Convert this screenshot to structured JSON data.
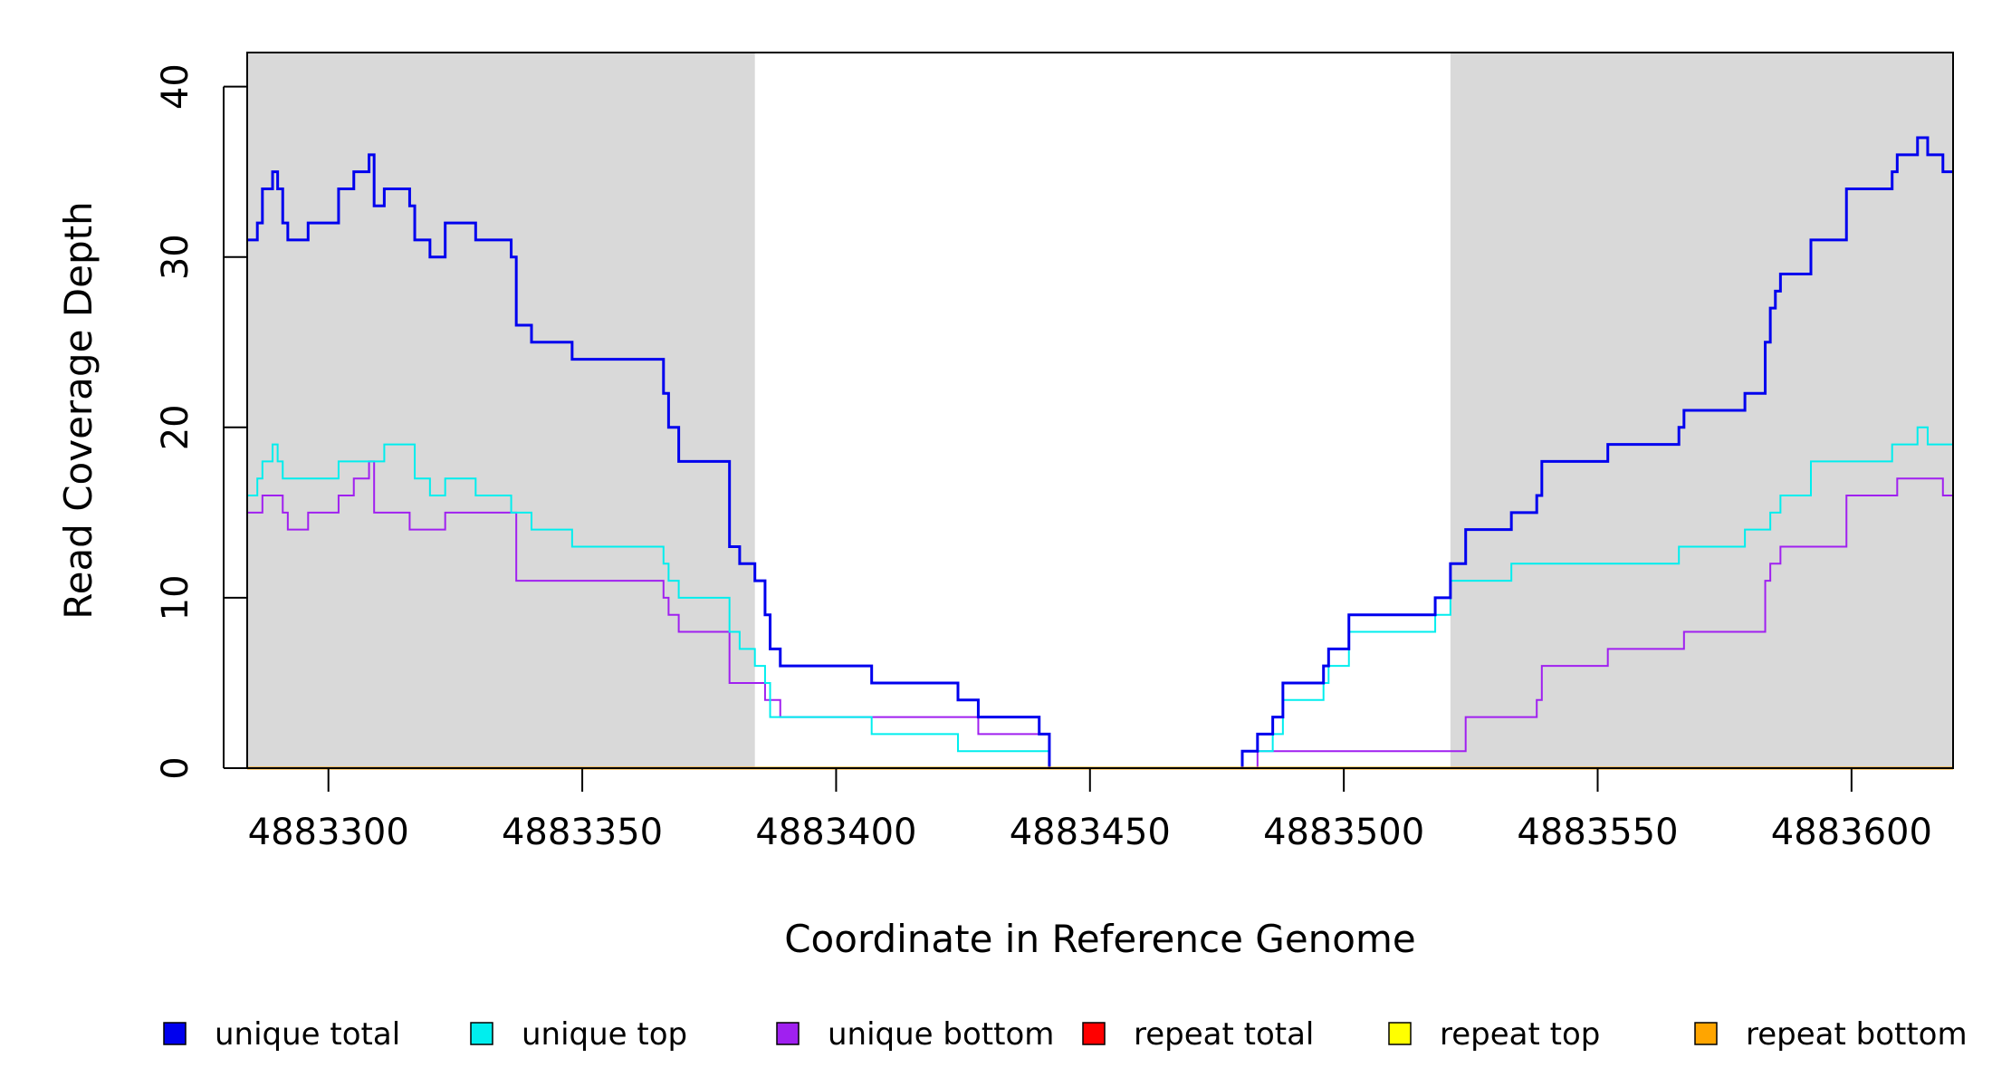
{
  "chart_data": {
    "type": "line",
    "title": "",
    "xlabel": "Coordinate in Reference Genome",
    "ylabel": "Read Coverage Depth",
    "xlim": [
      4883284,
      4883620
    ],
    "ylim": [
      0,
      42
    ],
    "x_ticks": [
      4883300,
      4883350,
      4883400,
      4883450,
      4883500,
      4883550,
      4883600
    ],
    "x_tick_labels": [
      "4883300",
      "4883350",
      "4883400",
      "4883450",
      "4883500",
      "4883550",
      "4883600"
    ],
    "y_ticks": [
      0,
      10,
      20,
      30,
      40
    ],
    "y_tick_labels": [
      "0",
      "10",
      "20",
      "30",
      "40"
    ],
    "shaded_regions": [
      {
        "from": 4883284,
        "to": 4883384,
        "color": "#d9d9d9"
      },
      {
        "from": 4883521,
        "to": 4883620,
        "color": "#d9d9d9"
      }
    ],
    "legend_position": "bottom",
    "series": [
      {
        "name": "unique total",
        "color": "#0000ee",
        "width": 3,
        "points": [
          [
            4883284,
            31
          ],
          [
            4883286,
            32
          ],
          [
            4883287,
            34
          ],
          [
            4883289,
            35
          ],
          [
            4883290,
            34
          ],
          [
            4883291,
            32
          ],
          [
            4883292,
            31
          ],
          [
            4883296,
            32
          ],
          [
            4883302,
            34
          ],
          [
            4883305,
            35
          ],
          [
            4883308,
            36
          ],
          [
            4883309,
            33
          ],
          [
            4883311,
            34
          ],
          [
            4883316,
            33
          ],
          [
            4883317,
            31
          ],
          [
            4883320,
            30
          ],
          [
            4883323,
            32
          ],
          [
            4883329,
            31
          ],
          [
            4883336,
            30
          ],
          [
            4883337,
            26
          ],
          [
            4883340,
            25
          ],
          [
            4883348,
            24
          ],
          [
            4883366,
            22
          ],
          [
            4883367,
            20
          ],
          [
            4883369,
            18
          ],
          [
            4883379,
            13
          ],
          [
            4883381,
            12
          ],
          [
            4883384,
            11
          ],
          [
            4883386,
            9
          ],
          [
            4883387,
            7
          ],
          [
            4883389,
            6
          ],
          [
            4883407,
            5
          ],
          [
            4883424,
            4
          ],
          [
            4883428,
            3
          ],
          [
            4883440,
            2
          ],
          [
            4883442,
            0
          ],
          [
            4883480,
            1
          ],
          [
            4883483,
            2
          ],
          [
            4883486,
            3
          ],
          [
            4883488,
            5
          ],
          [
            4883496,
            6
          ],
          [
            4883497,
            7
          ],
          [
            4883501,
            9
          ],
          [
            4883518,
            10
          ],
          [
            4883521,
            12
          ],
          [
            4883524,
            14
          ],
          [
            4883533,
            15
          ],
          [
            4883538,
            16
          ],
          [
            4883539,
            18
          ],
          [
            4883552,
            19
          ],
          [
            4883566,
            20
          ],
          [
            4883567,
            21
          ],
          [
            4883579,
            22
          ],
          [
            4883583,
            25
          ],
          [
            4883584,
            27
          ],
          [
            4883585,
            28
          ],
          [
            4883586,
            29
          ],
          [
            4883592,
            31
          ],
          [
            4883599,
            34
          ],
          [
            4883608,
            35
          ],
          [
            4883609,
            36
          ],
          [
            4883613,
            37
          ],
          [
            4883615,
            36
          ],
          [
            4883618,
            35
          ],
          [
            4883620,
            35
          ]
        ]
      },
      {
        "name": "unique top",
        "color": "#00eeee",
        "width": 2,
        "points": [
          [
            4883284,
            16
          ],
          [
            4883286,
            17
          ],
          [
            4883287,
            18
          ],
          [
            4883289,
            19
          ],
          [
            4883290,
            18
          ],
          [
            4883291,
            17
          ],
          [
            4883302,
            18
          ],
          [
            4883311,
            19
          ],
          [
            4883317,
            17
          ],
          [
            4883320,
            16
          ],
          [
            4883323,
            17
          ],
          [
            4883329,
            16
          ],
          [
            4883336,
            15
          ],
          [
            4883340,
            14
          ],
          [
            4883348,
            13
          ],
          [
            4883366,
            12
          ],
          [
            4883367,
            11
          ],
          [
            4883369,
            10
          ],
          [
            4883379,
            8
          ],
          [
            4883381,
            7
          ],
          [
            4883384,
            6
          ],
          [
            4883386,
            5
          ],
          [
            4883387,
            3
          ],
          [
            4883389,
            3
          ],
          [
            4883407,
            2
          ],
          [
            4883424,
            1
          ],
          [
            4883440,
            1
          ],
          [
            4883442,
            0
          ],
          [
            4883480,
            1
          ],
          [
            4883483,
            1
          ],
          [
            4883486,
            2
          ],
          [
            4883488,
            4
          ],
          [
            4883496,
            5
          ],
          [
            4883497,
            6
          ],
          [
            4883501,
            8
          ],
          [
            4883518,
            9
          ],
          [
            4883521,
            11
          ],
          [
            4883533,
            12
          ],
          [
            4883566,
            13
          ],
          [
            4883579,
            14
          ],
          [
            4883584,
            15
          ],
          [
            4883586,
            16
          ],
          [
            4883592,
            18
          ],
          [
            4883608,
            19
          ],
          [
            4883613,
            20
          ],
          [
            4883615,
            19
          ],
          [
            4883620,
            19
          ]
        ]
      },
      {
        "name": "unique bottom",
        "color": "#a020f0",
        "width": 2,
        "points": [
          [
            4883284,
            15
          ],
          [
            4883287,
            16
          ],
          [
            4883291,
            15
          ],
          [
            4883292,
            14
          ],
          [
            4883296,
            15
          ],
          [
            4883302,
            16
          ],
          [
            4883305,
            17
          ],
          [
            4883308,
            18
          ],
          [
            4883309,
            15
          ],
          [
            4883316,
            14
          ],
          [
            4883323,
            15
          ],
          [
            4883336,
            15
          ],
          [
            4883337,
            11
          ],
          [
            4883366,
            10
          ],
          [
            4883367,
            9
          ],
          [
            4883369,
            8
          ],
          [
            4883379,
            5
          ],
          [
            4883386,
            4
          ],
          [
            4883389,
            3
          ],
          [
            4883428,
            2
          ],
          [
            4883442,
            0
          ],
          [
            4883483,
            1
          ],
          [
            4883524,
            3
          ],
          [
            4883538,
            4
          ],
          [
            4883539,
            6
          ],
          [
            4883552,
            7
          ],
          [
            4883567,
            8
          ],
          [
            4883583,
            11
          ],
          [
            4883584,
            12
          ],
          [
            4883586,
            13
          ],
          [
            4883599,
            16
          ],
          [
            4883609,
            17
          ],
          [
            4883618,
            16
          ],
          [
            4883620,
            16
          ]
        ]
      },
      {
        "name": "repeat total",
        "color": "#ff0000",
        "width": 2,
        "points": [
          [
            4883284,
            0
          ],
          [
            4883620,
            0
          ]
        ]
      },
      {
        "name": "repeat top",
        "color": "#ffff00",
        "width": 2,
        "points": [
          [
            4883284,
            0
          ],
          [
            4883620,
            0
          ]
        ]
      },
      {
        "name": "repeat bottom",
        "color": "#ffa500",
        "width": 3,
        "points": [
          [
            4883284,
            0
          ],
          [
            4883620,
            0
          ]
        ]
      }
    ]
  }
}
